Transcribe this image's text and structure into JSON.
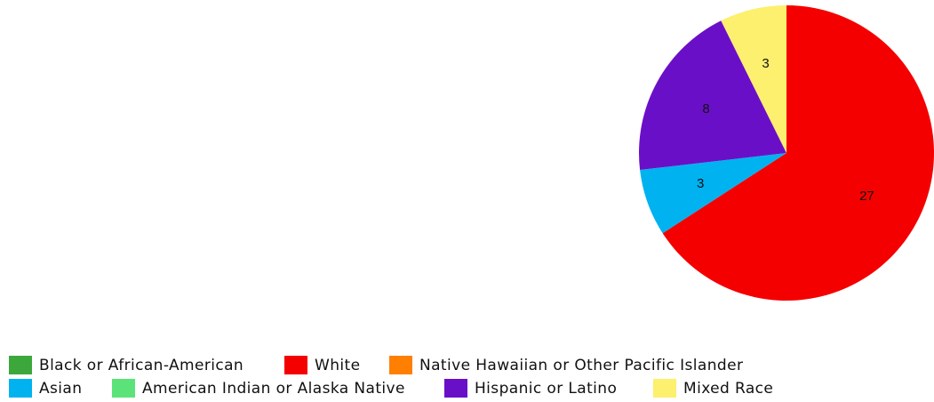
{
  "chart_data": {
    "type": "pie",
    "title": "",
    "start_angle_deg": 0,
    "direction": "clockwise",
    "categories": [
      "Black or African-American",
      "White",
      "Native Hawaiian or Other Pacific Islander",
      "Asian",
      "American Indian or Alaska Native",
      "Hispanic or Latino",
      "Mixed Race"
    ],
    "values": [
      0,
      27,
      0,
      3,
      0,
      8,
      3
    ],
    "value_labels": [
      "",
      "27",
      "",
      "3",
      "",
      "8",
      "3"
    ],
    "colors": [
      "#3ca83c",
      "#f50000",
      "#ff7f00",
      "#00b2f0",
      "#5be37a",
      "#6a0fc8",
      "#fcf06e"
    ],
    "legend_position": "bottom",
    "legend_rows": [
      [
        0,
        1,
        2
      ],
      [
        3,
        4,
        5,
        6
      ]
    ]
  }
}
